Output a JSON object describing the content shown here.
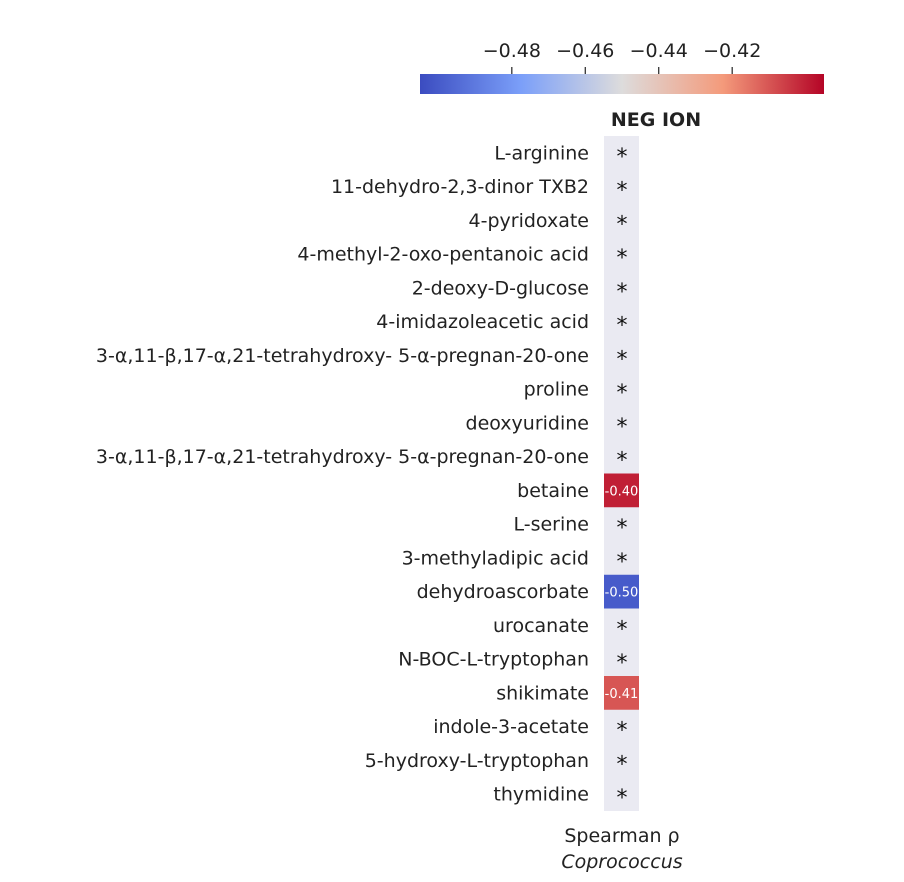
{
  "chart_data": {
    "type": "heatmap",
    "column_label": "NEG ION",
    "xlabel": "Spearman ρ",
    "xlabel_sub": "Coprococcus",
    "colorbar": {
      "colormap": "coolwarm",
      "vmin": -0.505,
      "vmax": -0.395,
      "ticks": [
        -0.48,
        -0.46,
        -0.44,
        -0.42
      ],
      "tick_labels": [
        "−0.48",
        "−0.46",
        "−0.44",
        "−0.42"
      ]
    },
    "rows": [
      {
        "label": "L-arginine",
        "value": null,
        "text": "*"
      },
      {
        "label": "11-dehydro-2,3-dinor TXB2",
        "value": null,
        "text": "*"
      },
      {
        "label": "4-pyridoxate",
        "value": null,
        "text": "*"
      },
      {
        "label": "4-methyl-2-oxo-pentanoic acid",
        "value": null,
        "text": "*"
      },
      {
        "label": "2-deoxy-D-glucose",
        "value": null,
        "text": "*"
      },
      {
        "label": "4-imidazoleacetic acid",
        "value": null,
        "text": "*"
      },
      {
        "label": "3-α,11-β,17-α,21-tetrahydroxy- 5-α-pregnan-20-one",
        "value": null,
        "text": "*"
      },
      {
        "label": "proline",
        "value": null,
        "text": "*"
      },
      {
        "label": "deoxyuridine",
        "value": null,
        "text": "*"
      },
      {
        "label": "3-α,11-β,17-α,21-tetrahydroxy- 5-α-pregnan-20-one",
        "value": null,
        "text": "*"
      },
      {
        "label": "betaine",
        "value": -0.4,
        "text": "-0.40"
      },
      {
        "label": "L-serine",
        "value": null,
        "text": "*"
      },
      {
        "label": "3-methyladipic acid",
        "value": null,
        "text": "*"
      },
      {
        "label": "dehydroascorbate",
        "value": -0.5,
        "text": "-0.50"
      },
      {
        "label": "urocanate",
        "value": null,
        "text": "*"
      },
      {
        "label": "N-BOC-L-tryptophan",
        "value": null,
        "text": "*"
      },
      {
        "label": "shikimate",
        "value": -0.41,
        "text": "-0.41"
      },
      {
        "label": "indole-3-acetate",
        "value": null,
        "text": "*"
      },
      {
        "label": "5-hydroxy-L-tryptophan",
        "value": null,
        "text": "*"
      },
      {
        "label": "thymidine",
        "value": null,
        "text": "*"
      }
    ]
  }
}
